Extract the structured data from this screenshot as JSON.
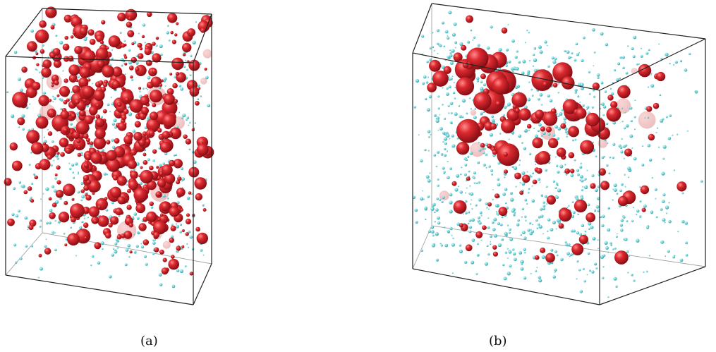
{
  "figure": {
    "panels": [
      {
        "caption": "(a)",
        "description_of_content": "cube",
        "red_sphere_color": "#c8141e",
        "cyan_particle_color": "#3fc7cf"
      },
      {
        "caption": "(b)",
        "description_of_content": "cube",
        "red_sphere_color": "#c8141e",
        "cyan_particle_color": "#3fc7cf"
      }
    ]
  }
}
